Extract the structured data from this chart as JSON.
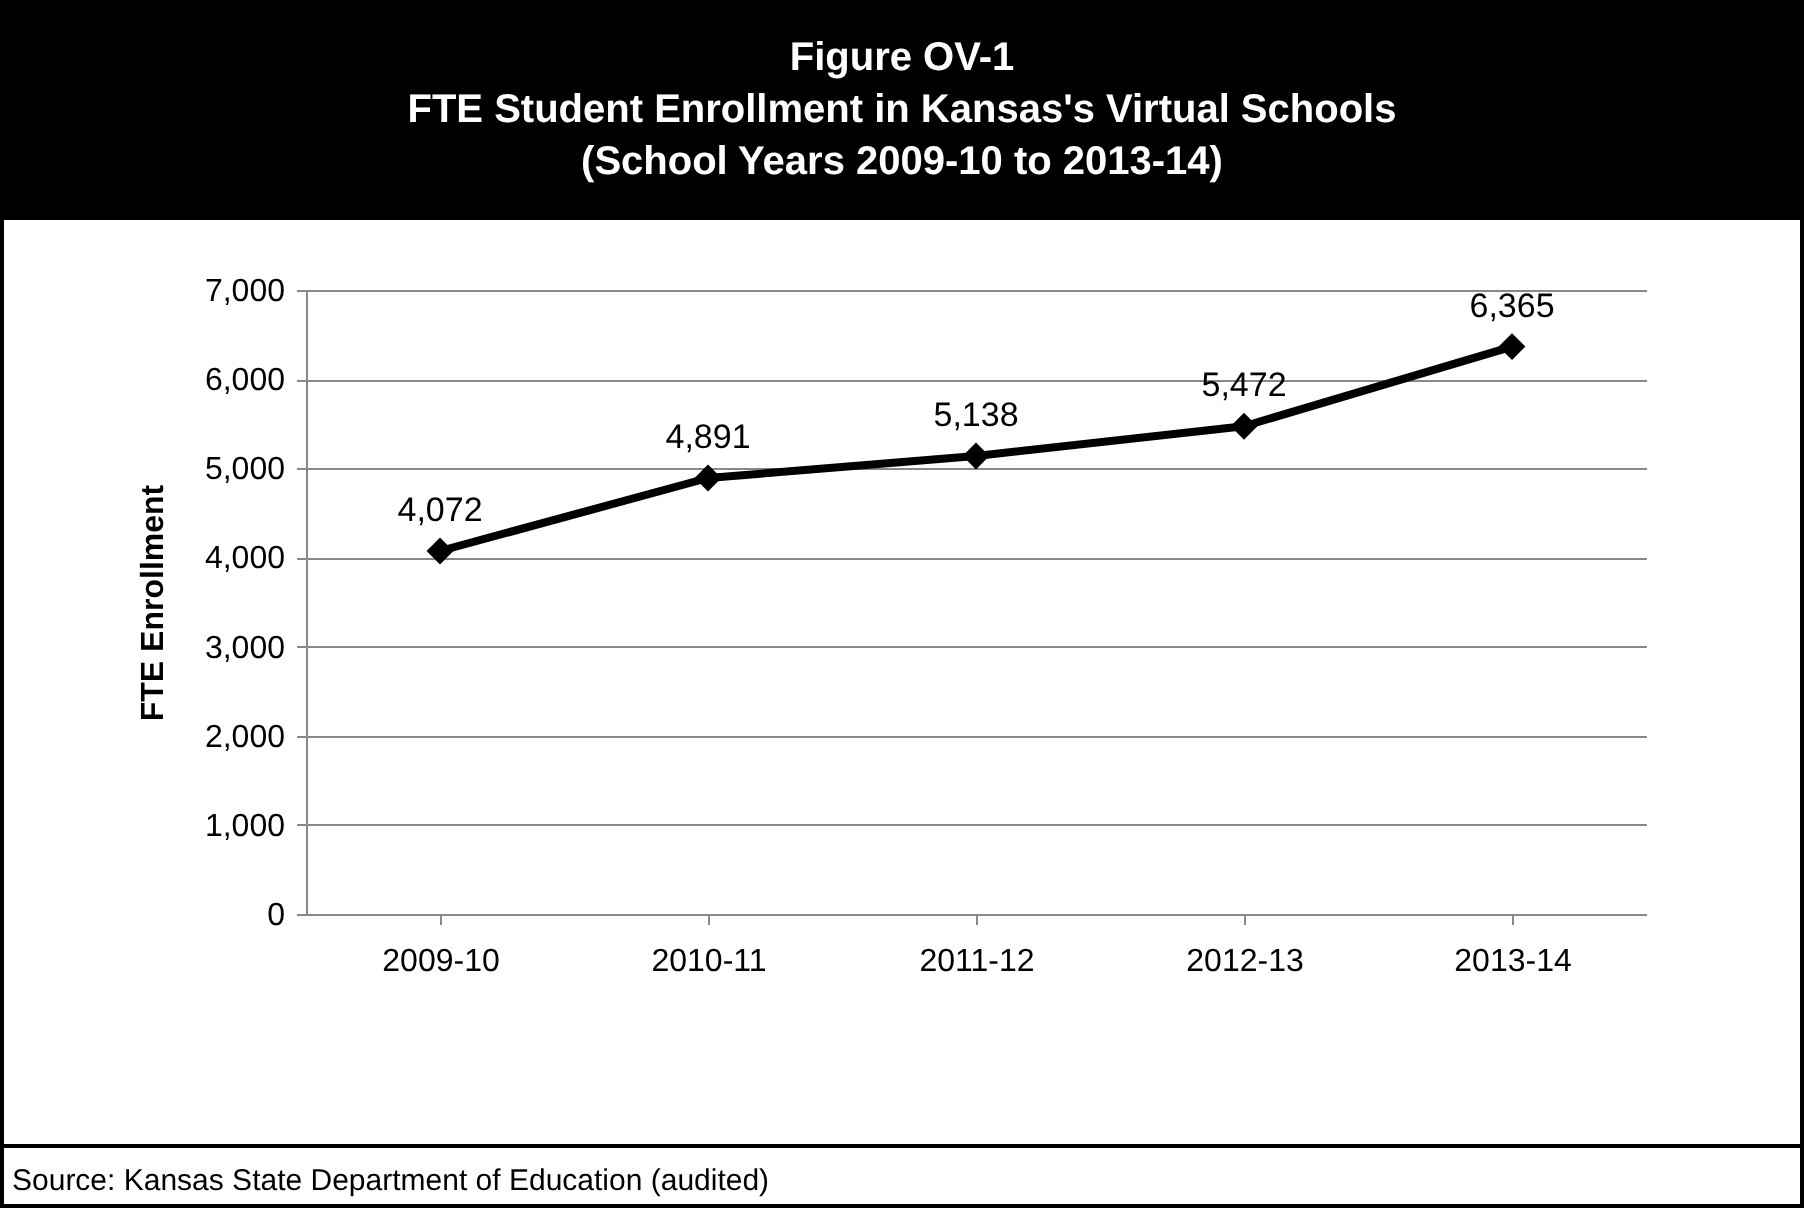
{
  "chart_data": {
    "type": "line",
    "title": "Figure OV-1\nFTE Student Enrollment in Kansas's Virtual Schools\n(School Years 2009-10 to 2013-14)",
    "ylabel": "FTE Enrollment",
    "categories": [
      "2009-10",
      "2010-11",
      "2011-12",
      "2012-13",
      "2013-14"
    ],
    "series": [
      {
        "color": "#000000",
        "values": [
          4072,
          4891,
          5138,
          5472,
          6365
        ],
        "value_labels": [
          "4,072",
          "4,891",
          "5,138",
          "5,472",
          "6,365"
        ]
      }
    ],
    "ylim": [
      0,
      7000
    ],
    "yticks": [
      0,
      {
        "value": 1000,
        "label": "1,000"
      },
      {
        "value": 2000,
        "label": "2,000"
      },
      {
        "value": 3000,
        "label": "3,000"
      },
      {
        "value": 4000,
        "label": "4,000"
      },
      {
        "value": 5000,
        "label": "5,000"
      },
      {
        "value": 6000,
        "label": "6,000"
      },
      {
        "value": 7000,
        "label": "7,000"
      }
    ],
    "grid": "y",
    "marker": "diamond",
    "line_style": "solid",
    "annotations": [
      "Source: Kansas State Department of Education (audited)"
    ]
  }
}
